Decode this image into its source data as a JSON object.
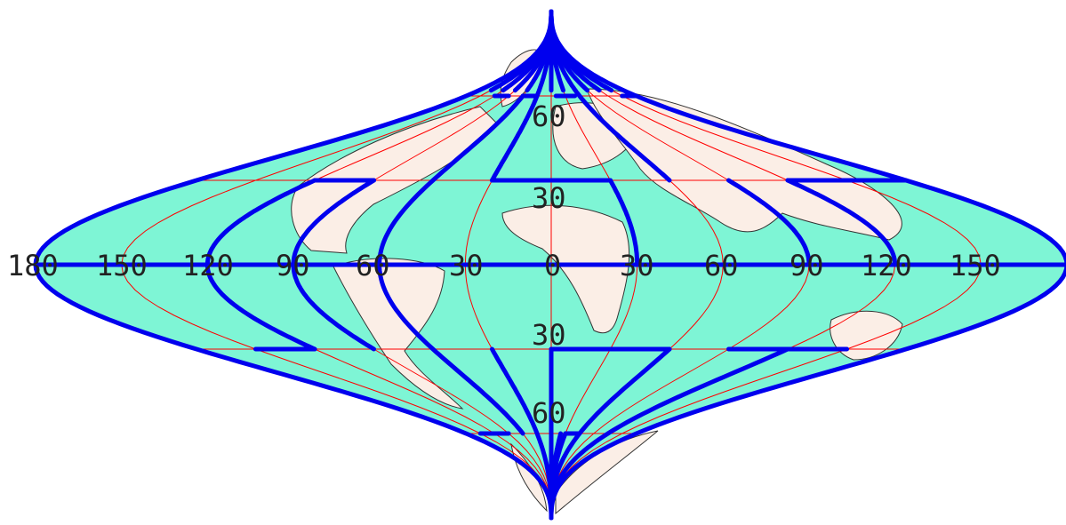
{
  "map": {
    "projection": "sinusoidal (interrupted)",
    "colors": {
      "ocean": "#7ef5d5",
      "land": "#fbeee6",
      "border": "#333333",
      "graticule": "#ff0000",
      "interruption": "#0000ee",
      "label": "#222222"
    },
    "longitude_labels": [
      "180",
      "150",
      "120",
      "90",
      "60",
      "30",
      "0",
      "30",
      "60",
      "90",
      "120",
      "150"
    ],
    "latitude_labels": [
      "60",
      "30",
      "30",
      "60"
    ]
  }
}
